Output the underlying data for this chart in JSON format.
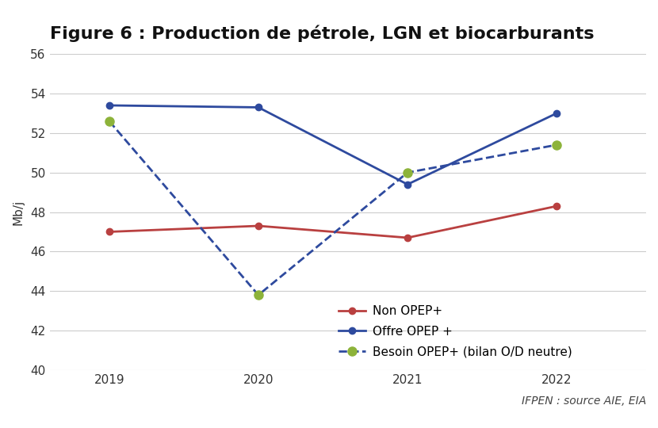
{
  "title": "Figure 6 : Production de pétrole, LGN et biocarburants",
  "ylabel": "Mb/j",
  "source_text": "IFPEN : source AIE, EIA",
  "years": [
    2019,
    2020,
    2021,
    2022
  ],
  "non_opep": [
    47.0,
    47.3,
    46.7,
    48.3
  ],
  "offre_opep": [
    53.4,
    53.3,
    49.4,
    53.0
  ],
  "besoin_opep": [
    52.6,
    43.8,
    50.0,
    51.4
  ],
  "ylim": [
    40,
    56
  ],
  "yticks": [
    40,
    42,
    44,
    46,
    48,
    50,
    52,
    54,
    56
  ],
  "color_non_opep": "#b94040",
  "color_offre_opep": "#2e4a9e",
  "color_besoin_opep": "#2e4a9e",
  "color_marker_besoin": "#8db33a",
  "bg_color": "#ffffff",
  "plot_bg_color": "#ffffff",
  "title_fontsize": 16,
  "label_fontsize": 11,
  "tick_fontsize": 11,
  "legend_fontsize": 11
}
